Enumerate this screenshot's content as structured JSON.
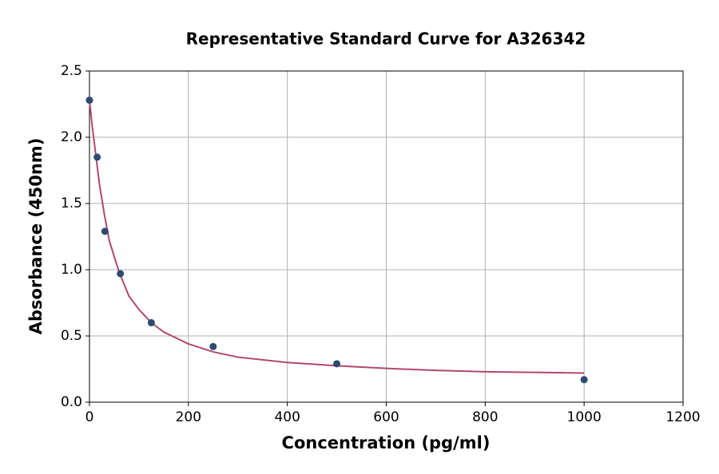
{
  "chart_data": {
    "type": "scatter",
    "title": "Representative Standard Curve for A326342",
    "x_label": "Concentration (pg/ml)",
    "y_label": "Absorbance (450nm)",
    "xlim": [
      0,
      1200
    ],
    "ylim": [
      0,
      2.5
    ],
    "xticks": [
      0,
      200,
      400,
      600,
      800,
      1000,
      1200
    ],
    "yticks": [
      {
        "value": 0,
        "label": "0.0"
      },
      0.5,
      {
        "value": 1,
        "label": "1.0"
      },
      1.5,
      {
        "value": 2,
        "label": "2.0"
      },
      2.5
    ],
    "grid": true,
    "series": [
      {
        "mode": "markers",
        "color": "#2d4a70",
        "x": [
          0,
          15.625,
          31.25,
          62.5,
          125,
          250,
          500,
          1000
        ],
        "values": [
          2.28,
          1.85,
          1.29,
          0.97,
          0.6,
          0.42,
          0.29,
          0.17
        ]
      },
      {
        "mode": "line",
        "color": "#b0486e",
        "x": [
          0,
          5,
          10,
          20,
          30,
          40,
          60,
          80,
          100,
          125,
          150,
          200,
          250,
          300,
          400,
          500,
          600,
          700,
          800,
          900,
          1000
        ],
        "values": [
          2.28,
          2.1,
          1.95,
          1.65,
          1.42,
          1.22,
          0.98,
          0.8,
          0.7,
          0.6,
          0.53,
          0.44,
          0.38,
          0.34,
          0.3,
          0.275,
          0.255,
          0.24,
          0.23,
          0.225,
          0.22
        ]
      }
    ]
  }
}
